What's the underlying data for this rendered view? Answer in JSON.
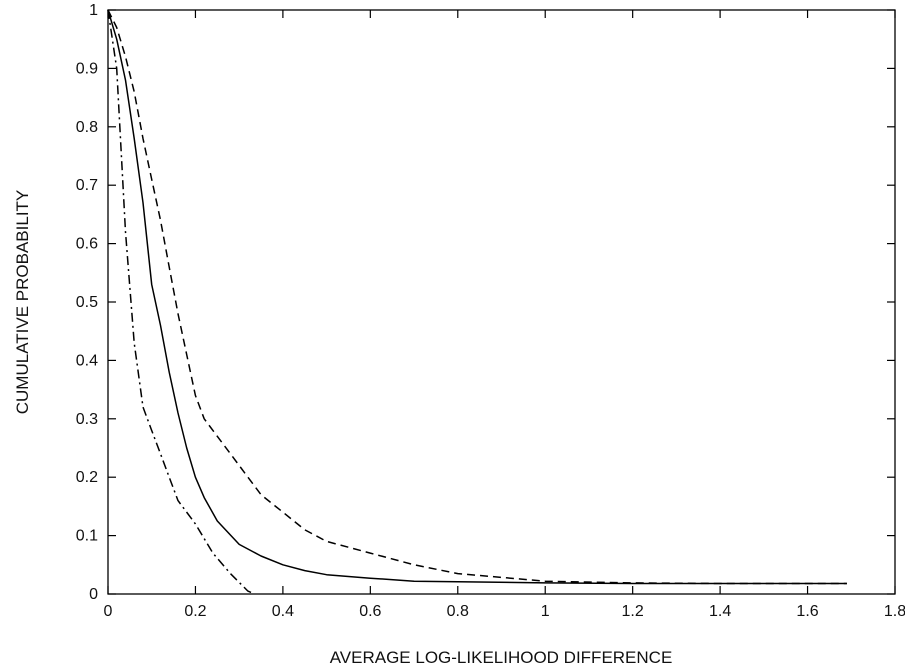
{
  "chart_data": {
    "type": "line",
    "title": "",
    "xlabel": "AVERAGE LOG-LIKELIHOOD DIFFERENCE",
    "ylabel": "CUMULATIVE PROBABILITY",
    "xlim": [
      0,
      1.8
    ],
    "ylim": [
      0,
      1
    ],
    "x_ticks": [
      "0",
      "0.2",
      "0.4",
      "0.6",
      "0.8",
      "1",
      "1.2",
      "1.4",
      "1.6",
      "1.8"
    ],
    "y_ticks": [
      "0",
      "0.1",
      "0.2",
      "0.3",
      "0.4",
      "0.5",
      "0.6",
      "0.7",
      "0.8",
      "0.9",
      "1"
    ],
    "grid": false,
    "legend": "none",
    "series": [
      {
        "style": "solid",
        "color": "#000000",
        "x": [
          0.0,
          0.02,
          0.04,
          0.06,
          0.08,
          0.1,
          0.12,
          0.14,
          0.16,
          0.18,
          0.2,
          0.22,
          0.25,
          0.3,
          0.35,
          0.4,
          0.45,
          0.5,
          0.6,
          0.7,
          0.8,
          1.0,
          1.2,
          1.4,
          1.6,
          1.69
        ],
        "y": [
          1.0,
          0.95,
          0.88,
          0.78,
          0.67,
          0.53,
          0.46,
          0.38,
          0.31,
          0.25,
          0.2,
          0.165,
          0.125,
          0.085,
          0.065,
          0.05,
          0.04,
          0.033,
          0.027,
          0.022,
          0.021,
          0.019,
          0.018,
          0.018,
          0.018,
          0.018
        ]
      },
      {
        "style": "dashed",
        "color": "#000000",
        "x": [
          0.0,
          0.02,
          0.04,
          0.06,
          0.08,
          0.1,
          0.12,
          0.14,
          0.16,
          0.18,
          0.2,
          0.22,
          0.25,
          0.3,
          0.35,
          0.4,
          0.45,
          0.5,
          0.6,
          0.7,
          0.8,
          1.0,
          1.2,
          1.4,
          1.6,
          1.69
        ],
        "y": [
          1.0,
          0.97,
          0.92,
          0.86,
          0.78,
          0.71,
          0.64,
          0.56,
          0.48,
          0.41,
          0.34,
          0.3,
          0.27,
          0.22,
          0.17,
          0.14,
          0.11,
          0.09,
          0.07,
          0.05,
          0.035,
          0.022,
          0.019,
          0.018,
          0.018,
          0.018
        ]
      },
      {
        "style": "dash-dot",
        "color": "#000000",
        "x": [
          0.0,
          0.02,
          0.04,
          0.06,
          0.08,
          0.1,
          0.12,
          0.14,
          0.16,
          0.2,
          0.24,
          0.28,
          0.32,
          0.335
        ],
        "y": [
          1.0,
          0.9,
          0.62,
          0.43,
          0.32,
          0.28,
          0.24,
          0.2,
          0.16,
          0.12,
          0.07,
          0.035,
          0.005,
          0.0
        ]
      }
    ]
  }
}
